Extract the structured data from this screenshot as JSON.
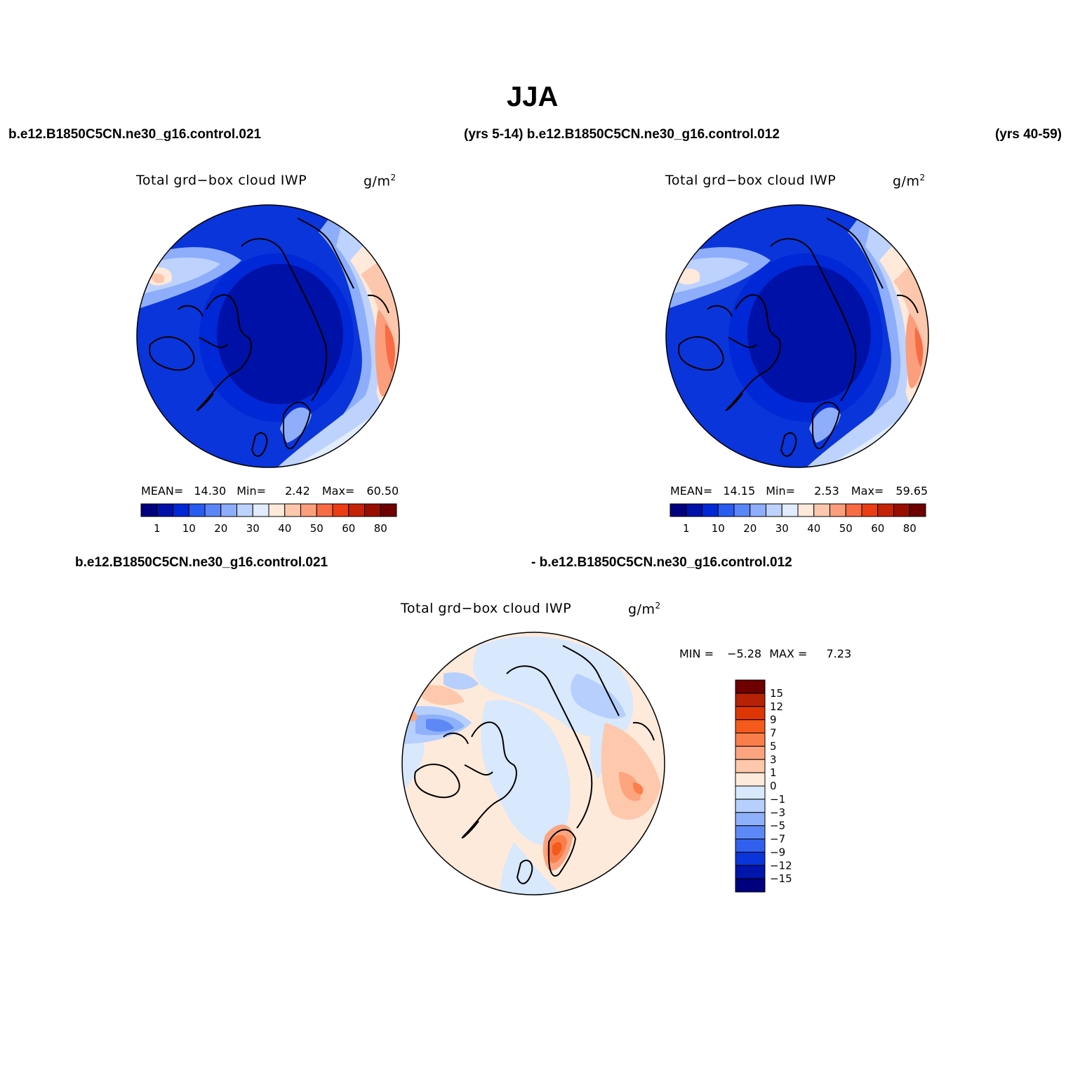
{
  "figure": {
    "title": "JJA"
  },
  "headers": {
    "top_left_case": "b.e12.B1850C5CN.ne30_g16.control.021",
    "top_left_years_and_right_case": "(yrs 5-14) b.e12.B1850C5CN.ne30_g16.control.012",
    "top_right_years": "(yrs 40-59)",
    "bottom_left_case": "b.e12.B1850C5CN.ne30_g16.control.021",
    "bottom_right_case": "- b.e12.B1850C5CN.ne30_g16.control.012"
  },
  "panels": [
    {
      "variable": "Total grd−box cloud IWP",
      "units_base": "g/m",
      "units_exp": "2",
      "mean_label": "MEAN=",
      "mean": "14.30",
      "min_label": "Min=",
      "min": "2.42",
      "max_label": "Max=",
      "max": "60.50"
    },
    {
      "variable": "Total grd−box cloud IWP",
      "units_base": "g/m",
      "units_exp": "2",
      "mean_label": "MEAN=",
      "mean": "14.15",
      "min_label": "Min=",
      "min": "2.53",
      "max_label": "Max=",
      "max": "59.65"
    },
    {
      "variable": "Total grd−box cloud IWP",
      "units_base": "g/m",
      "units_exp": "2",
      "min_label": "MIN =",
      "min": "−5.28",
      "max_label": "MAX =",
      "max": "7.23"
    }
  ],
  "colorbars": {
    "absolute": {
      "colors": [
        "#00007f",
        "#0011a8",
        "#0028d6",
        "#2a5cf0",
        "#5a86f6",
        "#8eaefb",
        "#bdd2fd",
        "#e1ecfe",
        "#ffe9da",
        "#fdc7ad",
        "#fb9e7c",
        "#f76b45",
        "#ea3d14",
        "#c42308",
        "#980f02",
        "#6e0000"
      ],
      "labels": [
        "1",
        "10",
        "20",
        "30",
        "40",
        "50",
        "60",
        "80"
      ]
    },
    "difference": {
      "colors": [
        "#6e0000",
        "#b52205",
        "#dd3604",
        "#f45a1c",
        "#fa7e4a",
        "#fca47f",
        "#fdc8ab",
        "#feeadb",
        "#d8e8fd",
        "#b6cffc",
        "#8fb0fb",
        "#5c89f6",
        "#3160ee",
        "#0a35da",
        "#0015aa",
        "#00007f"
      ],
      "labels": [
        "15",
        "12",
        "9",
        "7",
        "5",
        "3",
        "1",
        "0",
        "−1",
        "−3",
        "−5",
        "−7",
        "−9",
        "−12",
        "−15"
      ]
    }
  },
  "map": {
    "projection": "north-polar-stereographic",
    "coastline_color": "#000000"
  }
}
